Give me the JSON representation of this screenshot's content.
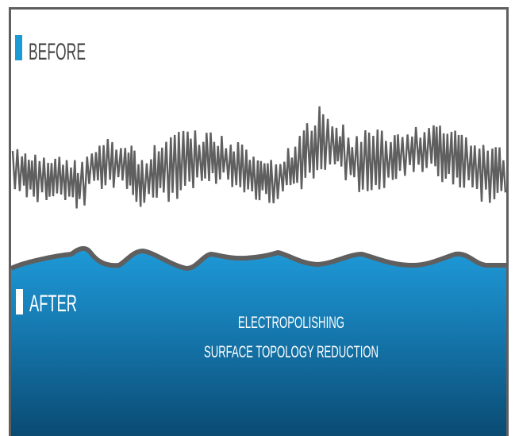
{
  "before_section": {
    "label": "BEFORE",
    "marker_color": "#1b9ad6",
    "profile_color": "#5f5f5f"
  },
  "after_section": {
    "label": "AFTER",
    "marker_color": "#ffffff",
    "surface_outline_color": "#5f5f5f",
    "fill_top_color": "#1e9ad8",
    "fill_bottom_color": "#0a4a72"
  },
  "caption": {
    "line1": "ELECTROPOLISHING",
    "line2": "SURFACE TOPOLOGY REDUCTION",
    "color": "#ffffff"
  },
  "frame": {
    "border_color": "#5f5f5f"
  }
}
